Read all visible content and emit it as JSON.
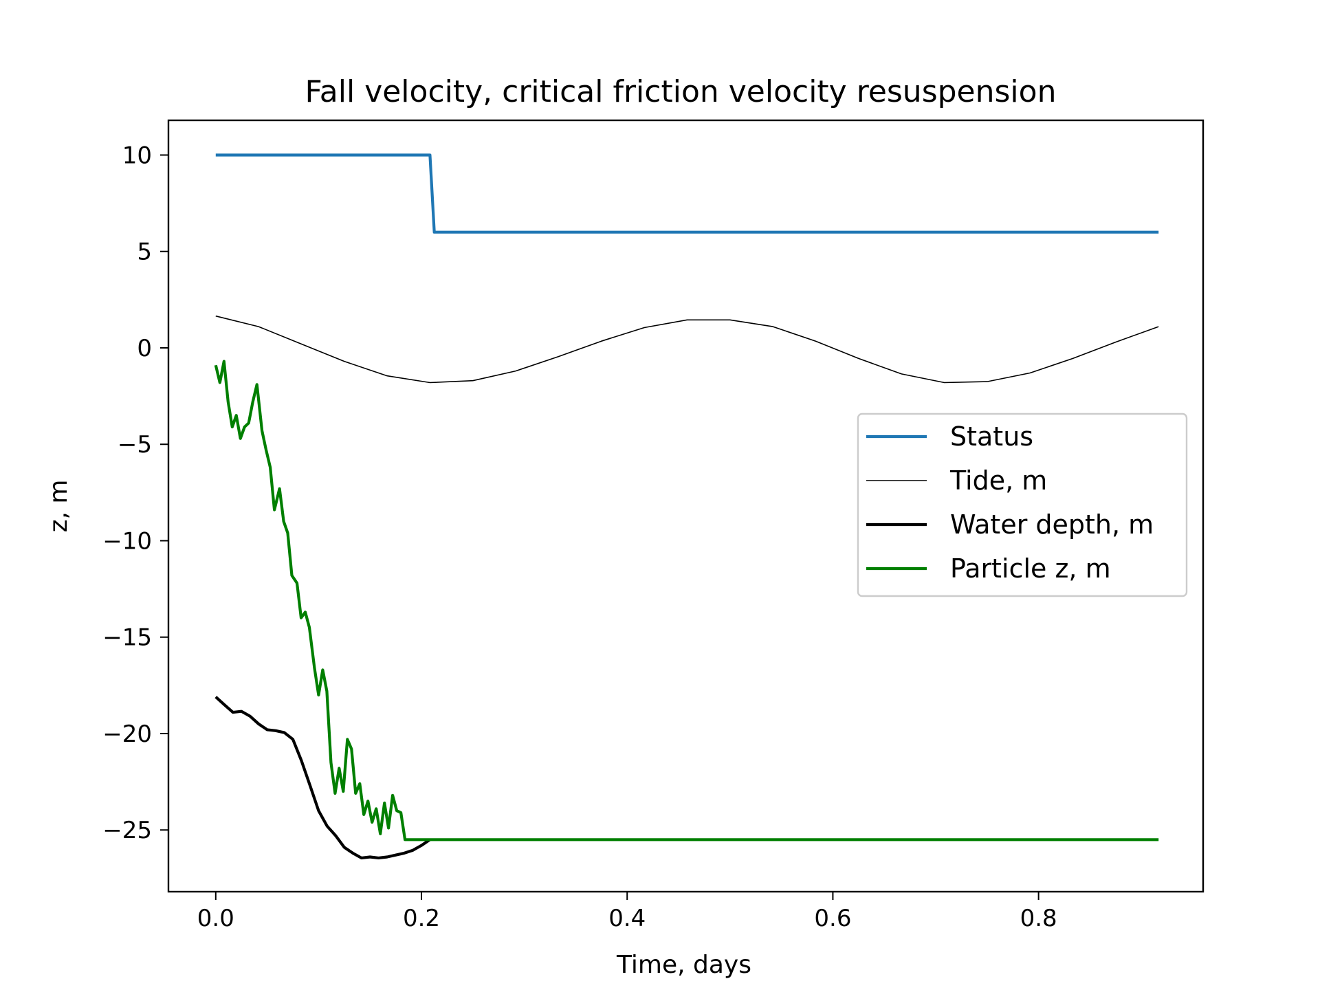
{
  "chart_data": {
    "type": "line",
    "title": "Fall velocity, critical friction velocity  resuspension",
    "xlabel": "Time, days",
    "ylabel": "z, m",
    "xlim": [
      -0.046,
      0.96
    ],
    "ylim": [
      -28.2,
      11.8
    ],
    "xticks": [
      0.0,
      0.2,
      0.4,
      0.6,
      0.8
    ],
    "xtick_labels": [
      "0.0",
      "0.2",
      "0.4",
      "0.6",
      "0.8"
    ],
    "yticks": [
      10,
      5,
      0,
      -5,
      -10,
      -15,
      -20,
      -25
    ],
    "ytick_labels": [
      "10",
      "5",
      "0",
      "−5",
      "−10",
      "−15",
      "−20",
      "−25"
    ],
    "grid": false,
    "legend_position": "center-right",
    "series": [
      {
        "name": "Status",
        "color": "#1f77b4",
        "style": "thick",
        "x": [
          0.0,
          0.2083,
          0.2125,
          0.9167
        ],
        "y": [
          10,
          10,
          6,
          6
        ]
      },
      {
        "name": "Tide, m",
        "color": "#000000",
        "style": "thin",
        "x": [
          0.0,
          0.0417,
          0.0833,
          0.125,
          0.1667,
          0.2083,
          0.25,
          0.2917,
          0.3333,
          0.375,
          0.4167,
          0.4583,
          0.5,
          0.5417,
          0.5833,
          0.625,
          0.6667,
          0.7083,
          0.75,
          0.7917,
          0.8333,
          0.875,
          0.9167
        ],
        "y": [
          1.65,
          1.1,
          0.2,
          -0.7,
          -1.45,
          -1.8,
          -1.7,
          -1.2,
          -0.45,
          0.35,
          1.05,
          1.45,
          1.45,
          1.1,
          0.35,
          -0.55,
          -1.35,
          -1.8,
          -1.75,
          -1.3,
          -0.55,
          0.3,
          1.1
        ]
      },
      {
        "name": "Water depth, m",
        "color": "#000000",
        "style": "thick",
        "x": [
          0.0,
          0.0083,
          0.0167,
          0.025,
          0.0333,
          0.0417,
          0.05,
          0.0583,
          0.0667,
          0.075,
          0.0833,
          0.0917,
          0.1,
          0.1083,
          0.1167,
          0.125,
          0.1333,
          0.1417,
          0.15,
          0.1583,
          0.1667,
          0.175,
          0.1833,
          0.1917,
          0.2,
          0.2083
        ],
        "y": [
          -18.1,
          -18.5,
          -18.9,
          -18.85,
          -19.1,
          -19.5,
          -19.8,
          -19.85,
          -19.95,
          -20.3,
          -21.4,
          -22.7,
          -24.0,
          -24.8,
          -25.3,
          -25.9,
          -26.2,
          -26.45,
          -26.4,
          -26.45,
          -26.4,
          -26.3,
          -26.2,
          -26.05,
          -25.8,
          -25.5
        ]
      },
      {
        "name": "Particle z, m",
        "color": "#007f00",
        "style": "thick",
        "x": [
          0.0,
          0.004,
          0.008,
          0.012,
          0.016,
          0.02,
          0.024,
          0.028,
          0.032,
          0.036,
          0.04,
          0.045,
          0.049,
          0.053,
          0.057,
          0.062,
          0.066,
          0.07,
          0.074,
          0.079,
          0.083,
          0.087,
          0.091,
          0.096,
          0.1,
          0.104,
          0.108,
          0.112,
          0.116,
          0.12,
          0.124,
          0.128,
          0.132,
          0.136,
          0.14,
          0.144,
          0.148,
          0.152,
          0.156,
          0.16,
          0.164,
          0.168,
          0.172,
          0.176,
          0.18,
          0.184,
          0.188,
          0.192,
          0.196,
          0.2,
          0.204,
          0.2083,
          0.2125,
          0.9167
        ],
        "y": [
          -0.9,
          -1.8,
          -0.7,
          -2.8,
          -4.1,
          -3.5,
          -4.7,
          -4.1,
          -3.9,
          -2.8,
          -1.9,
          -4.3,
          -5.3,
          -6.2,
          -8.4,
          -7.3,
          -9.0,
          -9.6,
          -11.8,
          -12.2,
          -14.0,
          -13.7,
          -14.5,
          -16.6,
          -18.0,
          -16.7,
          -17.8,
          -21.5,
          -23.1,
          -21.8,
          -23.0,
          -20.3,
          -20.8,
          -23.1,
          -22.6,
          -24.2,
          -23.5,
          -24.6,
          -23.9,
          -25.2,
          -23.6,
          -24.9,
          -23.2,
          -24.0,
          -24.1,
          -25.5,
          -25.5,
          -25.5,
          -25.5,
          -25.5,
          -25.5,
          -25.5,
          -25.5,
          -25.5
        ]
      }
    ]
  }
}
